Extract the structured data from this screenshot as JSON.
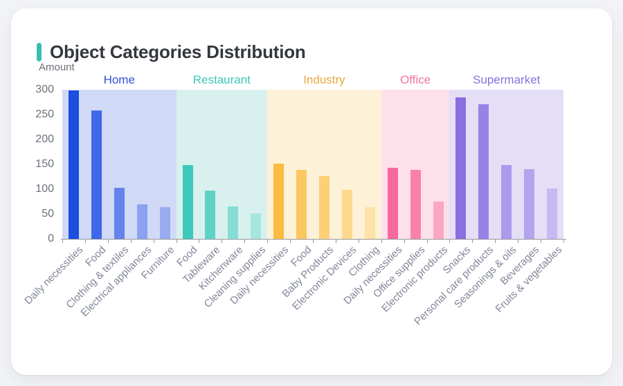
{
  "page": {
    "background": "#f2f3f6"
  },
  "card": {
    "title": "Object Categories Distribution",
    "accent_color": "#35beb4"
  },
  "chart_data": {
    "type": "bar",
    "title": "Object Categories Distribution",
    "ylabel": "Amount",
    "xlabel": "",
    "ylim": [
      0,
      300
    ],
    "yticks": [
      0,
      50,
      100,
      150,
      200,
      250,
      300
    ],
    "grid": false,
    "legend_position": "group headers above each shaded band",
    "groups": [
      {
        "name": "Home",
        "label_color": "#2d50dd",
        "panel_color": "#d0daf6",
        "categories": [
          "Daily necessities",
          "Food",
          "Clothing & textiles",
          "Electrical appliances",
          "Furniture"
        ],
        "values": [
          298,
          258,
          103,
          69,
          64
        ],
        "bar_colors": [
          "#1d4ee2",
          "#3f68e8",
          "#6583ec",
          "#8ba2f0",
          "#98abf1"
        ]
      },
      {
        "name": "Restaurant",
        "label_color": "#3ec8bb",
        "panel_color": "#d9f1ee",
        "categories": [
          "Food",
          "Tableware",
          "Kitchenware",
          "Cleaning supplies"
        ],
        "values": [
          148,
          97,
          65,
          51
        ],
        "bar_colors": [
          "#3fc8bc",
          "#5ed2c7",
          "#84ded4",
          "#a5e7df"
        ]
      },
      {
        "name": "Industry",
        "label_color": "#e9a83d",
        "panel_color": "#fdf2d7",
        "categories": [
          "Daily necessities",
          "Food",
          "Baby Products",
          "Electronic Devices",
          "Clothing"
        ],
        "values": [
          151,
          139,
          126,
          99,
          64
        ],
        "bar_colors": [
          "#fcbb41",
          "#fcc75f",
          "#fdd075",
          "#fdd98d",
          "#fee2a6"
        ]
      },
      {
        "name": "Office",
        "label_color": "#f5729d",
        "panel_color": "#fee0ea",
        "categories": [
          "Daily necessities",
          "Office supplies",
          "Electronic products"
        ],
        "values": [
          143,
          139,
          75
        ],
        "bar_colors": [
          "#f7689c",
          "#f981ac",
          "#fba7c2"
        ]
      },
      {
        "name": "Supermarket",
        "label_color": "#8a70e0",
        "panel_color": "#e4def7",
        "categories": [
          "Snacks",
          "Personal care products",
          "Seasonings & oils",
          "Beverages",
          "Fruits & vegetables"
        ],
        "values": [
          285,
          271,
          148,
          140,
          101
        ],
        "bar_colors": [
          "#8a6fe0",
          "#9883e5",
          "#ab9aea",
          "#b3a4ed",
          "#c6baf1"
        ]
      }
    ]
  }
}
